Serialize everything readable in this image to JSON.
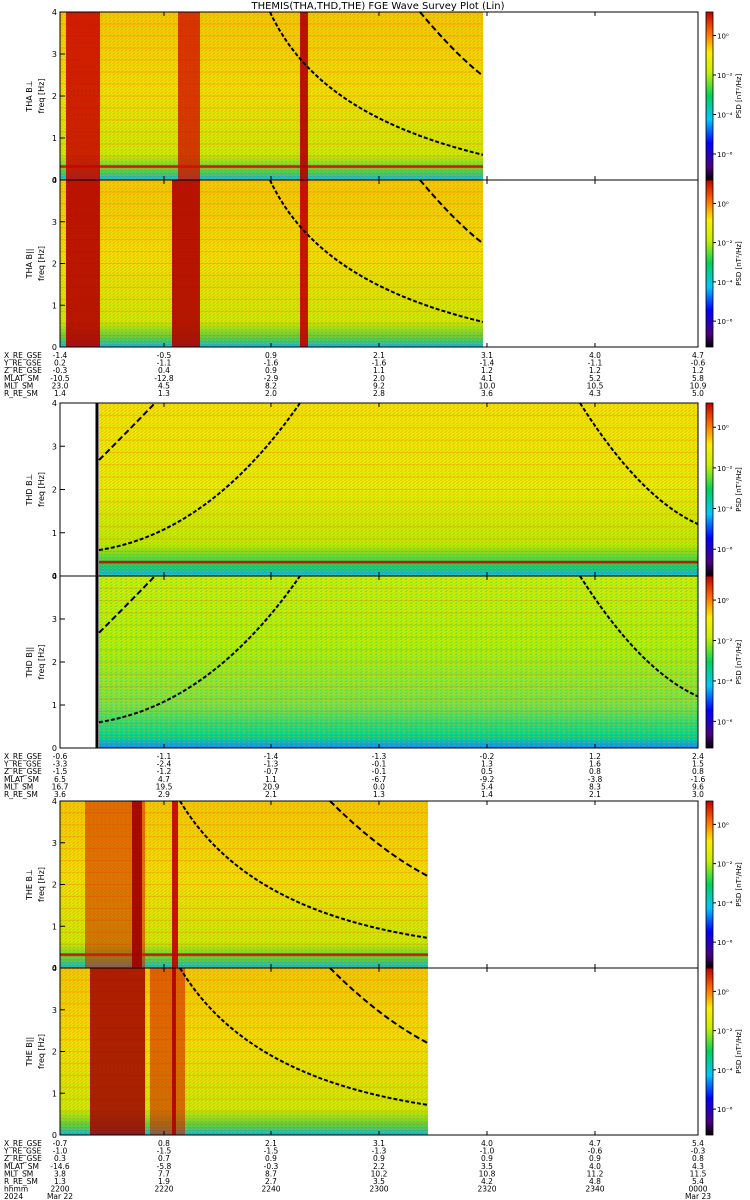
{
  "title": "THEMIS(THA,THD,THE) FGE Wave Survey Plot (Lin)",
  "colorbar_label": "PSD [nT²/Hz]",
  "colorbar_ticks": [
    "10⁰",
    "10⁻²",
    "10⁻⁴",
    "10⁻⁶"
  ],
  "chart_data": [
    {
      "probe": "THA",
      "type": "heatmap",
      "panels": [
        {
          "ylabel_top": "THA B⊥",
          "ylabel_bottom": "freq [Hz]",
          "yticks": [
            "0",
            "1",
            "2",
            "3",
            "4"
          ],
          "ylim": [
            0,
            4
          ]
        },
        {
          "ylabel_top": "THA B||",
          "ylabel_bottom": "freq [Hz]",
          "yticks": [
            "0",
            "1",
            "2",
            "3",
            "4"
          ],
          "ylim": [
            0,
            4
          ]
        }
      ],
      "ephemeris": [
        {
          "label": "X_RE_GSE",
          "values": [
            "-1.4",
            "-0.5",
            "0.9",
            "2.1",
            "3.1",
            "4.0",
            "4.7"
          ]
        },
        {
          "label": "Y_RE_GSE",
          "values": [
            "0.2",
            "-1.1",
            "-1.6",
            "-1.6",
            "-1.4",
            "-1.1",
            "-0.6"
          ]
        },
        {
          "label": "Z_RE_GSE",
          "values": [
            "-0.3",
            "0.4",
            "0.9",
            "1.1",
            "1.2",
            "1.2",
            "1.2"
          ]
        },
        {
          "label": "MLAT_SM",
          "values": [
            "-10.5",
            "-12.8",
            "-2.9",
            "2.0",
            "4.1",
            "5.2",
            "5.8"
          ]
        },
        {
          "label": "MLT_SM",
          "values": [
            "23.0",
            "4.5",
            "8.2",
            "9.2",
            "10.0",
            "10.5",
            "10.9"
          ]
        },
        {
          "label": "R_RE_SM",
          "values": [
            "1.4",
            "1.3",
            "2.0",
            "2.8",
            "3.6",
            "4.3",
            "5.0"
          ]
        }
      ]
    },
    {
      "probe": "THD",
      "type": "heatmap",
      "panels": [
        {
          "ylabel_top": "THD B⊥",
          "ylabel_bottom": "freq [Hz]",
          "yticks": [
            "0",
            "1",
            "2",
            "3",
            "4"
          ],
          "ylim": [
            0,
            4
          ]
        },
        {
          "ylabel_top": "THD B||",
          "ylabel_bottom": "freq [Hz]",
          "yticks": [
            "0",
            "1",
            "2",
            "3",
            "4"
          ],
          "ylim": [
            0,
            4
          ]
        }
      ],
      "ephemeris": [
        {
          "label": "X_RE_GSE",
          "values": [
            "-0.6",
            "-1.1",
            "-1.4",
            "-1.3",
            "-0.2",
            "1.2",
            "2.4"
          ]
        },
        {
          "label": "Y_RE_GSE",
          "values": [
            "-3.3",
            "-2.4",
            "-1.3",
            "-0.1",
            "1.3",
            "1.6",
            "1.5"
          ]
        },
        {
          "label": "Z_RE_GSE",
          "values": [
            "-1.5",
            "-1.2",
            "-0.7",
            "-0.1",
            "0.5",
            "0.8",
            "0.8"
          ]
        },
        {
          "label": "MLAT_SM",
          "values": [
            "6.5",
            "4.7",
            "1.1",
            "-6.7",
            "-9.2",
            "-3.8",
            "-1.6"
          ]
        },
        {
          "label": "MLT_SM",
          "values": [
            "16.7",
            "19.5",
            "20.9",
            "0.0",
            "5.4",
            "8.3",
            "9.6"
          ]
        },
        {
          "label": "R_RE_SM",
          "values": [
            "3.6",
            "2.9",
            "2.1",
            "1.3",
            "1.4",
            "2.1",
            "3.0"
          ]
        }
      ]
    },
    {
      "probe": "THE",
      "type": "heatmap",
      "panels": [
        {
          "ylabel_top": "THE B⊥",
          "ylabel_bottom": "freq [Hz]",
          "yticks": [
            "0",
            "1",
            "2",
            "3",
            "4"
          ],
          "ylim": [
            0,
            4
          ]
        },
        {
          "ylabel_top": "THE B||",
          "ylabel_bottom": "freq [Hz]",
          "yticks": [
            "0",
            "1",
            "2",
            "3",
            "4"
          ],
          "ylim": [
            0,
            4
          ]
        }
      ],
      "ephemeris": [
        {
          "label": "X_RE_GSE",
          "values": [
            "-0.7",
            "0.8",
            "2.1",
            "3.1",
            "4.0",
            "4.7",
            "5.4"
          ]
        },
        {
          "label": "Y_RE_GSE",
          "values": [
            "-1.0",
            "-1.5",
            "-1.5",
            "-1.3",
            "-1.0",
            "-0.6",
            "-0.3"
          ]
        },
        {
          "label": "Z_RE_GSE",
          "values": [
            "0.3",
            "0.7",
            "0.9",
            "0.9",
            "0.9",
            "0.9",
            "0.8"
          ]
        },
        {
          "label": "MLAT_SM",
          "values": [
            "-14.6",
            "-5.8",
            "-0.3",
            "2.2",
            "3.5",
            "4.0",
            "4.3"
          ]
        },
        {
          "label": "MLT_SM",
          "values": [
            "3.8",
            "7.7",
            "8.7",
            "10.2",
            "10.8",
            "11.2",
            "11.5"
          ]
        },
        {
          "label": "R_RE_SM",
          "values": [
            "1.3",
            "1.9",
            "2.7",
            "3.5",
            "4.2",
            "4.8",
            "5.4"
          ]
        }
      ]
    }
  ],
  "time_axis": {
    "label_rows": [
      {
        "label": "hhmm",
        "values": [
          "2200",
          "2220",
          "2240",
          "2300",
          "2320",
          "2340",
          "0000"
        ]
      },
      {
        "label": "2024",
        "values": [
          "Mar 22",
          "",
          "",
          "",
          "",
          "",
          "Mar 23"
        ]
      }
    ]
  }
}
